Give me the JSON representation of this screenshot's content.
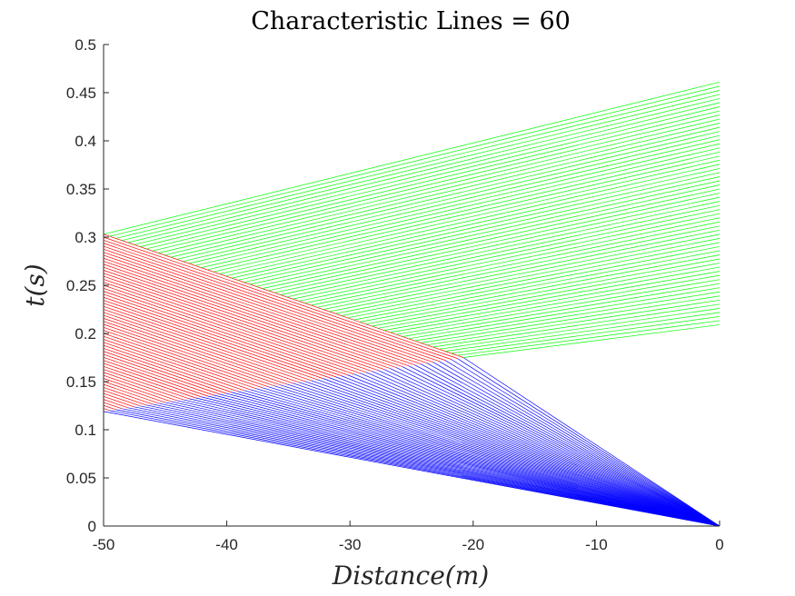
{
  "chart_data": {
    "type": "line",
    "title": "Characteristic Lines = 60",
    "xlabel": "Distance(m)",
    "ylabel": "t(s)",
    "xlim": [
      -50,
      0
    ],
    "ylim": [
      0,
      0.5
    ],
    "xticks": [
      "-50",
      "-40",
      "-30",
      "-20",
      "-10",
      "0"
    ],
    "yticks": [
      "0",
      "0.05",
      "0.1",
      "0.15",
      "0.2",
      "0.25",
      "0.3",
      "0.35",
      "0.4",
      "0.45",
      "0.5"
    ],
    "grid": false,
    "line_count": 60,
    "families": [
      {
        "color": "#0000ff",
        "description": "lines from origin (0, 0) to points on the segment from (-50, 0.119) to (-20.8, 0.175)",
        "from_start": [
          0,
          0
        ],
        "from_end": [
          0,
          0
        ],
        "to_start": [
          -50,
          0.119
        ],
        "to_end": [
          -20.8,
          0.175
        ]
      },
      {
        "color": "#ff0000",
        "description": "lines from the segment (-50, 0.119)-(-20.8, 0.175) to the left boundary x=-50, t from 0.119 to 0.303",
        "from_start": [
          -50,
          0.119
        ],
        "from_end": [
          -20.8,
          0.175
        ],
        "to_start": [
          -50,
          0.119
        ],
        "to_end": [
          -50,
          0.303
        ]
      },
      {
        "color": "#00ff00",
        "description": "lines from the left boundary / curve up to x=0, t from 0.209 to 0.461",
        "from_start": [
          -20.8,
          0.175
        ],
        "from_end": [
          -50,
          0.303
        ],
        "to_start": [
          0,
          0.209
        ],
        "to_end": [
          0,
          0.461
        ]
      }
    ]
  }
}
